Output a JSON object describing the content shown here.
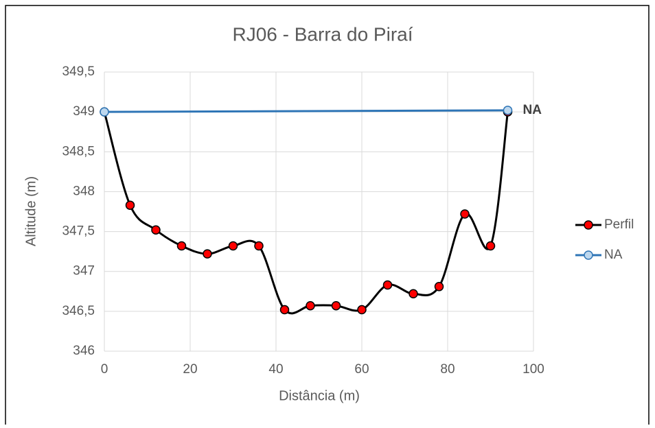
{
  "chart_data": {
    "type": "line",
    "title": "RJ06 - Barra do Piraí",
    "xlabel": "Distância (m)",
    "ylabel": "Altitude (m)",
    "xlim": [
      0,
      100
    ],
    "xticks": [
      0,
      20,
      40,
      60,
      80,
      100
    ],
    "ylim": [
      346,
      349.5
    ],
    "yticks": [
      346,
      {
        "value": 346.5,
        "label": "346,5"
      },
      347,
      {
        "value": 347.5,
        "label": "347,5"
      },
      348,
      {
        "value": 348.5,
        "label": "348,5"
      },
      349,
      {
        "value": 349.5,
        "label": "349,5"
      }
    ],
    "grid": true,
    "smooth": true,
    "legend": "right",
    "annotation": "NA",
    "series": [
      {
        "name": "Perfil",
        "color": "#000000",
        "marker_color": "#ff0000",
        "x": [
          0,
          6,
          12,
          18,
          24,
          30,
          36,
          42,
          48,
          54,
          60,
          66,
          72,
          78,
          84,
          90,
          94
        ],
        "values": [
          349,
          347.83,
          347.52,
          347.32,
          347.22,
          347.32,
          347.32,
          346.52,
          346.57,
          346.57,
          346.52,
          346.83,
          346.72,
          346.81,
          347.72,
          347.32,
          349
        ]
      },
      {
        "name": "NA",
        "color": "#2e75b6",
        "marker_color": "#bdd7ee",
        "x": [
          0,
          94
        ],
        "values": [
          349,
          349.02
        ]
      }
    ]
  }
}
